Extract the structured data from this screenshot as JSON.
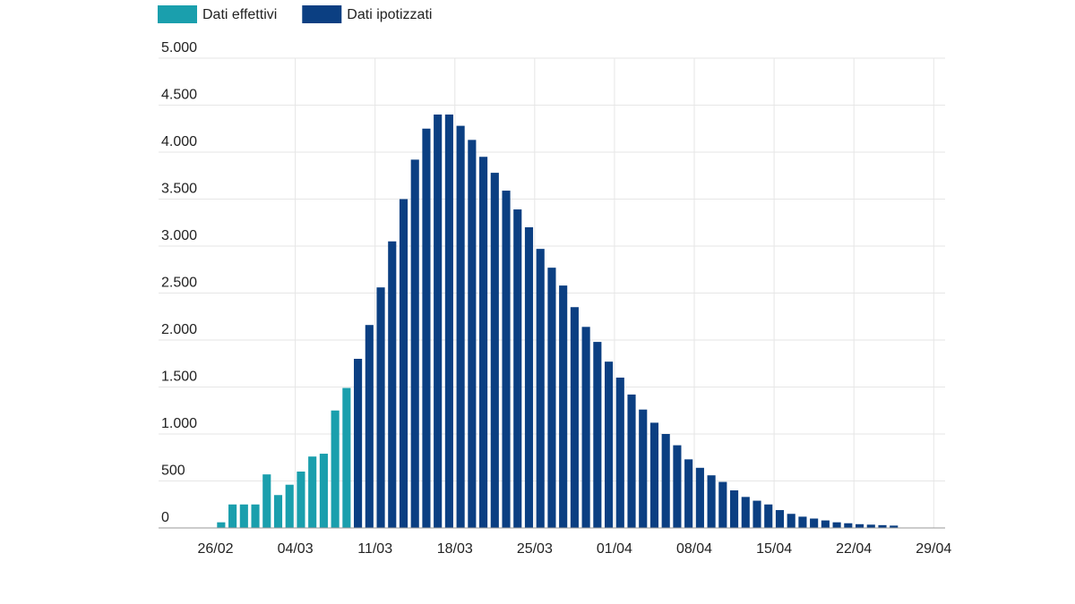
{
  "chart_data": {
    "type": "bar",
    "categories": [
      "26/02",
      null,
      null,
      null,
      null,
      null,
      null,
      "04/03",
      null,
      null,
      null,
      null,
      null,
      null,
      "11/03",
      null,
      null,
      null,
      null,
      null,
      null,
      "18/03",
      null,
      null,
      null,
      null,
      null,
      null,
      "25/03",
      null,
      null,
      null,
      null,
      null,
      null,
      "01/04",
      null,
      null,
      null,
      null,
      null,
      null,
      "08/04",
      null,
      null,
      null,
      null,
      null,
      null,
      "15/04",
      null,
      null,
      null,
      null,
      null,
      null,
      "22/04",
      null,
      null,
      null,
      null,
      null,
      null,
      "29/04"
    ],
    "series": [
      {
        "name": "Dati effettivi",
        "color": "#1a9fad",
        "values": [
          60,
          250,
          250,
          250,
          570,
          350,
          460,
          600,
          760,
          790,
          1250,
          1490,
          null,
          null,
          null,
          null,
          null,
          null,
          null,
          null,
          null,
          null,
          null,
          null,
          null,
          null,
          null,
          null,
          null,
          null,
          null,
          null,
          null,
          null,
          null,
          null,
          null,
          null,
          null,
          null,
          null,
          null,
          null,
          null,
          null,
          null,
          null,
          null,
          null,
          null,
          null,
          null,
          null,
          null,
          null,
          null,
          null,
          null,
          null,
          null,
          null,
          null,
          null,
          null
        ]
      },
      {
        "name": "Dati ipotizzati",
        "color": "#0b3f82",
        "values": [
          null,
          null,
          null,
          null,
          null,
          null,
          null,
          null,
          null,
          null,
          null,
          null,
          1800,
          2160,
          2560,
          3050,
          3500,
          3920,
          4250,
          4400,
          4400,
          4280,
          4130,
          3950,
          3780,
          3590,
          3390,
          3200,
          2970,
          2770,
          2580,
          2350,
          2140,
          1980,
          1770,
          1600,
          1420,
          1260,
          1120,
          1000,
          880,
          730,
          640,
          560,
          490,
          400,
          330,
          290,
          250,
          190,
          150,
          120,
          100,
          80,
          60,
          50,
          40,
          35,
          30,
          25,
          null,
          null,
          null,
          null
        ]
      }
    ],
    "ylim": [
      0,
      5000
    ],
    "yticks": [
      0,
      500,
      {
        "value": 1000,
        "label": "1.000"
      },
      {
        "value": 1500,
        "label": "1.500"
      },
      {
        "value": 2000,
        "label": "2.000"
      },
      {
        "value": 2500,
        "label": "2.500"
      },
      {
        "value": 3000,
        "label": "3.000"
      },
      {
        "value": 3500,
        "label": "3.500"
      },
      {
        "value": 4000,
        "label": "4.000"
      },
      {
        "value": 4500,
        "label": "4.500"
      },
      {
        "value": 5000,
        "label": "5.000"
      }
    ],
    "grid": true,
    "legend": "top-left"
  }
}
